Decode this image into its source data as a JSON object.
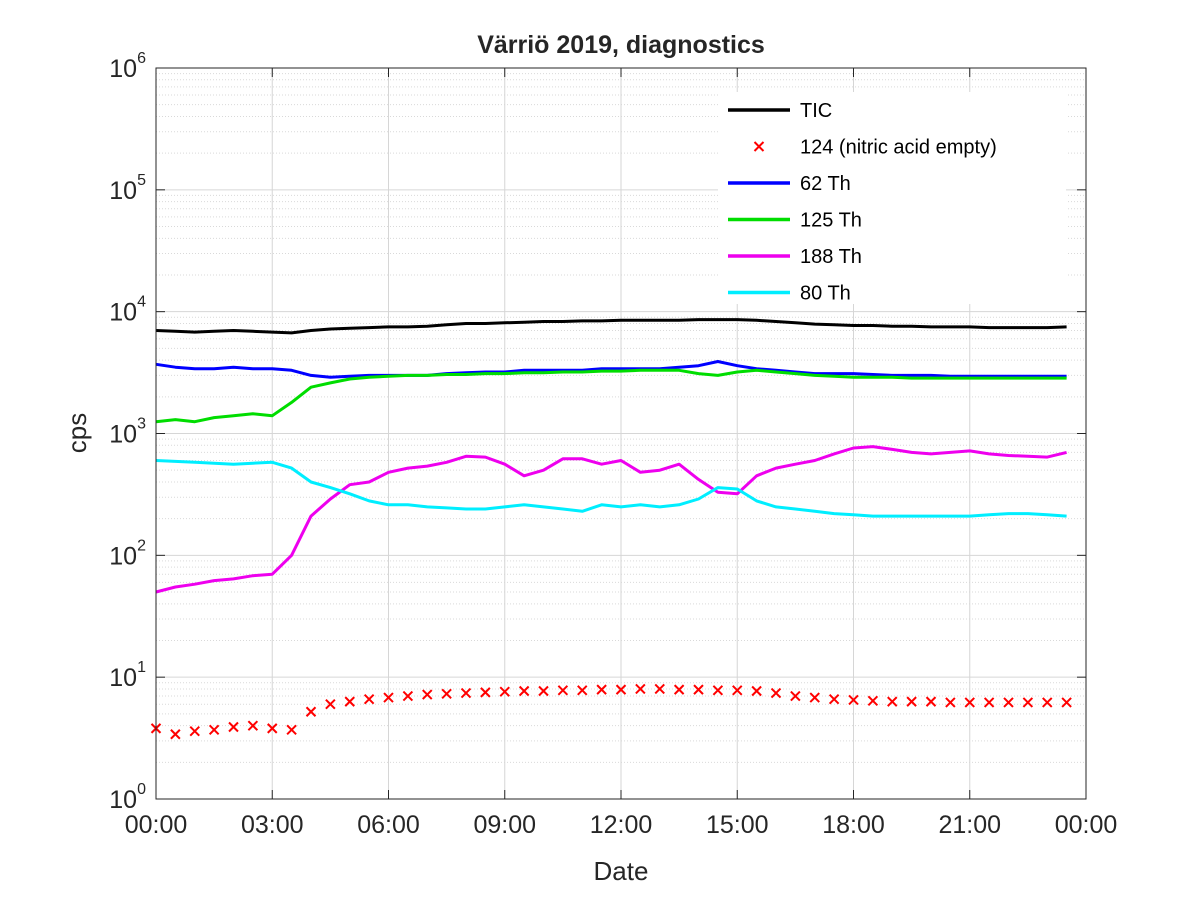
{
  "chart_data": {
    "type": "line",
    "title": "Värriö 2019, diagnostics",
    "xlabel": "Date",
    "ylabel": "cps",
    "xscale": "time",
    "yscale": "log",
    "xlim": [
      "00:00",
      "00:00"
    ],
    "ylim": [
      1,
      1000000
    ],
    "x_ticks": [
      "00:00",
      "03:00",
      "06:00",
      "09:00",
      "12:00",
      "15:00",
      "18:00",
      "21:00",
      "00:00"
    ],
    "y_ticks": [
      {
        "base": "10",
        "exp": "0",
        "value": 1
      },
      {
        "base": "10",
        "exp": "1",
        "value": 10
      },
      {
        "base": "10",
        "exp": "2",
        "value": 100
      },
      {
        "base": "10",
        "exp": "3",
        "value": 1000
      },
      {
        "base": "10",
        "exp": "4",
        "value": 10000
      },
      {
        "base": "10",
        "exp": "5",
        "value": 100000
      },
      {
        "base": "10",
        "exp": "6",
        "value": 1000000
      }
    ],
    "grid": true,
    "minor_grid": true,
    "legend_position": "top-right",
    "x": [
      "00:00",
      "00:30",
      "01:00",
      "01:30",
      "02:00",
      "02:30",
      "03:00",
      "03:30",
      "04:00",
      "04:30",
      "05:00",
      "05:30",
      "06:00",
      "06:30",
      "07:00",
      "07:30",
      "08:00",
      "08:30",
      "09:00",
      "09:30",
      "10:00",
      "10:30",
      "11:00",
      "11:30",
      "12:00",
      "12:30",
      "13:00",
      "13:30",
      "14:00",
      "14:30",
      "15:00",
      "15:30",
      "16:00",
      "16:30",
      "17:00",
      "17:30",
      "18:00",
      "18:30",
      "19:00",
      "19:30",
      "20:00",
      "20:30",
      "21:00",
      "21:30",
      "22:00",
      "22:30",
      "23:00",
      "23:30"
    ],
    "series": [
      {
        "name": "TIC",
        "color": "#000000",
        "style": "line",
        "values": [
          7000,
          6900,
          6800,
          6900,
          7000,
          6900,
          6800,
          6700,
          7000,
          7200,
          7300,
          7400,
          7500,
          7500,
          7600,
          7800,
          8000,
          8000,
          8100,
          8200,
          8300,
          8300,
          8400,
          8400,
          8500,
          8500,
          8500,
          8500,
          8600,
          8600,
          8600,
          8500,
          8300,
          8100,
          7900,
          7800,
          7700,
          7700,
          7600,
          7600,
          7500,
          7500,
          7500,
          7400,
          7400,
          7400,
          7400,
          7500
        ]
      },
      {
        "name": "124 (nitric acid empty)",
        "color": "#ff0000",
        "style": "markers",
        "values": [
          3.8,
          3.4,
          3.6,
          3.7,
          3.9,
          4.0,
          3.8,
          3.7,
          5.2,
          6.0,
          6.3,
          6.6,
          6.8,
          7.0,
          7.2,
          7.3,
          7.4,
          7.5,
          7.6,
          7.7,
          7.7,
          7.8,
          7.8,
          7.9,
          7.9,
          8.0,
          8.0,
          7.9,
          7.9,
          7.8,
          7.8,
          7.7,
          7.4,
          7.0,
          6.8,
          6.6,
          6.5,
          6.4,
          6.3,
          6.3,
          6.3,
          6.2,
          6.2,
          6.2,
          6.2,
          6.2,
          6.2,
          6.2
        ]
      },
      {
        "name": "62 Th",
        "color": "#0000ff",
        "style": "line",
        "values": [
          3700,
          3500,
          3400,
          3400,
          3500,
          3400,
          3400,
          3300,
          3000,
          2900,
          2950,
          3000,
          3000,
          3000,
          3000,
          3100,
          3150,
          3200,
          3200,
          3300,
          3300,
          3300,
          3300,
          3400,
          3400,
          3400,
          3400,
          3500,
          3600,
          3900,
          3600,
          3400,
          3300,
          3200,
          3100,
          3100,
          3100,
          3050,
          3000,
          3000,
          3000,
          2950,
          2950,
          2950,
          2950,
          2950,
          2950,
          2950
        ]
      },
      {
        "name": "125 Th",
        "color": "#00dd00",
        "style": "line",
        "values": [
          1250,
          1300,
          1250,
          1350,
          1400,
          1450,
          1400,
          1800,
          2400,
          2600,
          2800,
          2900,
          2950,
          3000,
          3000,
          3050,
          3050,
          3100,
          3100,
          3150,
          3150,
          3200,
          3200,
          3250,
          3250,
          3300,
          3300,
          3300,
          3100,
          3000,
          3200,
          3300,
          3200,
          3100,
          3000,
          2950,
          2900,
          2900,
          2900,
          2850,
          2850,
          2850,
          2850,
          2850,
          2850,
          2850,
          2850,
          2850
        ]
      },
      {
        "name": "188 Th",
        "color": "#ee00ee",
        "style": "line",
        "values": [
          50,
          55,
          58,
          62,
          64,
          68,
          70,
          100,
          210,
          290,
          380,
          400,
          480,
          520,
          540,
          580,
          650,
          640,
          560,
          450,
          500,
          620,
          620,
          560,
          600,
          480,
          500,
          560,
          420,
          330,
          320,
          450,
          520,
          560,
          600,
          680,
          760,
          780,
          740,
          700,
          680,
          700,
          720,
          680,
          660,
          650,
          640,
          700
        ]
      },
      {
        "name": "80 Th",
        "color": "#00eeff",
        "style": "line",
        "values": [
          600,
          590,
          580,
          570,
          560,
          570,
          580,
          520,
          400,
          360,
          320,
          280,
          260,
          260,
          250,
          245,
          240,
          240,
          250,
          260,
          250,
          240,
          230,
          260,
          250,
          260,
          250,
          260,
          290,
          360,
          350,
          280,
          250,
          240,
          230,
          220,
          215,
          210,
          210,
          210,
          210,
          210,
          210,
          215,
          220,
          220,
          215,
          210
        ]
      }
    ]
  }
}
